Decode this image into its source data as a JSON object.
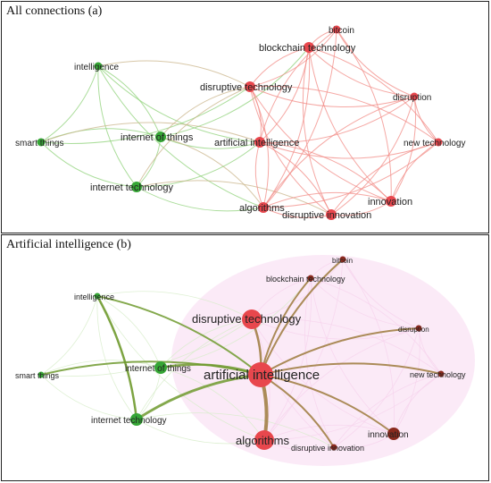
{
  "colors": {
    "cluster_green": "#35a635",
    "cluster_red": "#e8474d",
    "edge_green": "#8fd27a",
    "edge_red": "#f28b86",
    "edge_brown": "#9c7a3c",
    "edge_olive": "#6f9a2e",
    "halo_pink": "#f3c4e8"
  },
  "panels": [
    {
      "title": "All connections (a)",
      "nodes": [
        {
          "label": "intelligence",
          "cluster": "green",
          "weight": 1
        },
        {
          "label": "smart things",
          "cluster": "green",
          "weight": 1
        },
        {
          "label": "internet of things",
          "cluster": "green",
          "weight": 2
        },
        {
          "label": "internet technology",
          "cluster": "green",
          "weight": 2
        },
        {
          "label": "bitcoin",
          "cluster": "red",
          "weight": 1
        },
        {
          "label": "blockchain technology",
          "cluster": "red",
          "weight": 2
        },
        {
          "label": "disruptive technology",
          "cluster": "red",
          "weight": 2
        },
        {
          "label": "disruption",
          "cluster": "red",
          "weight": 1
        },
        {
          "label": "artificial intelligence",
          "cluster": "red",
          "weight": 2
        },
        {
          "label": "new technology",
          "cluster": "red",
          "weight": 1
        },
        {
          "label": "algorithms",
          "cluster": "red",
          "weight": 2
        },
        {
          "label": "disruptive innovation",
          "cluster": "red",
          "weight": 2
        },
        {
          "label": "innovation",
          "cluster": "red",
          "weight": 2
        }
      ]
    },
    {
      "title": "Artificial intelligence (b)",
      "focus": "artificial intelligence",
      "nodes": [
        {
          "label": "intelligence",
          "cluster": "green",
          "weight": 1
        },
        {
          "label": "smart things",
          "cluster": "green",
          "weight": 1
        },
        {
          "label": "internet of things",
          "cluster": "green",
          "weight": 2
        },
        {
          "label": "internet technology",
          "cluster": "green",
          "weight": 2
        },
        {
          "label": "bitcoin",
          "cluster": "red",
          "weight": 1
        },
        {
          "label": "blockchain technology",
          "cluster": "red",
          "weight": 1
        },
        {
          "label": "disruptive technology",
          "cluster": "red",
          "weight": 3
        },
        {
          "label": "disruption",
          "cluster": "red",
          "weight": 1
        },
        {
          "label": "artificial intelligence",
          "cluster": "red",
          "weight": 4
        },
        {
          "label": "new technology",
          "cluster": "red",
          "weight": 1
        },
        {
          "label": "algorithms",
          "cluster": "red",
          "weight": 3
        },
        {
          "label": "disruptive innovation",
          "cluster": "red",
          "weight": 1
        },
        {
          "label": "innovation",
          "cluster": "red",
          "weight": 2
        }
      ]
    }
  ]
}
